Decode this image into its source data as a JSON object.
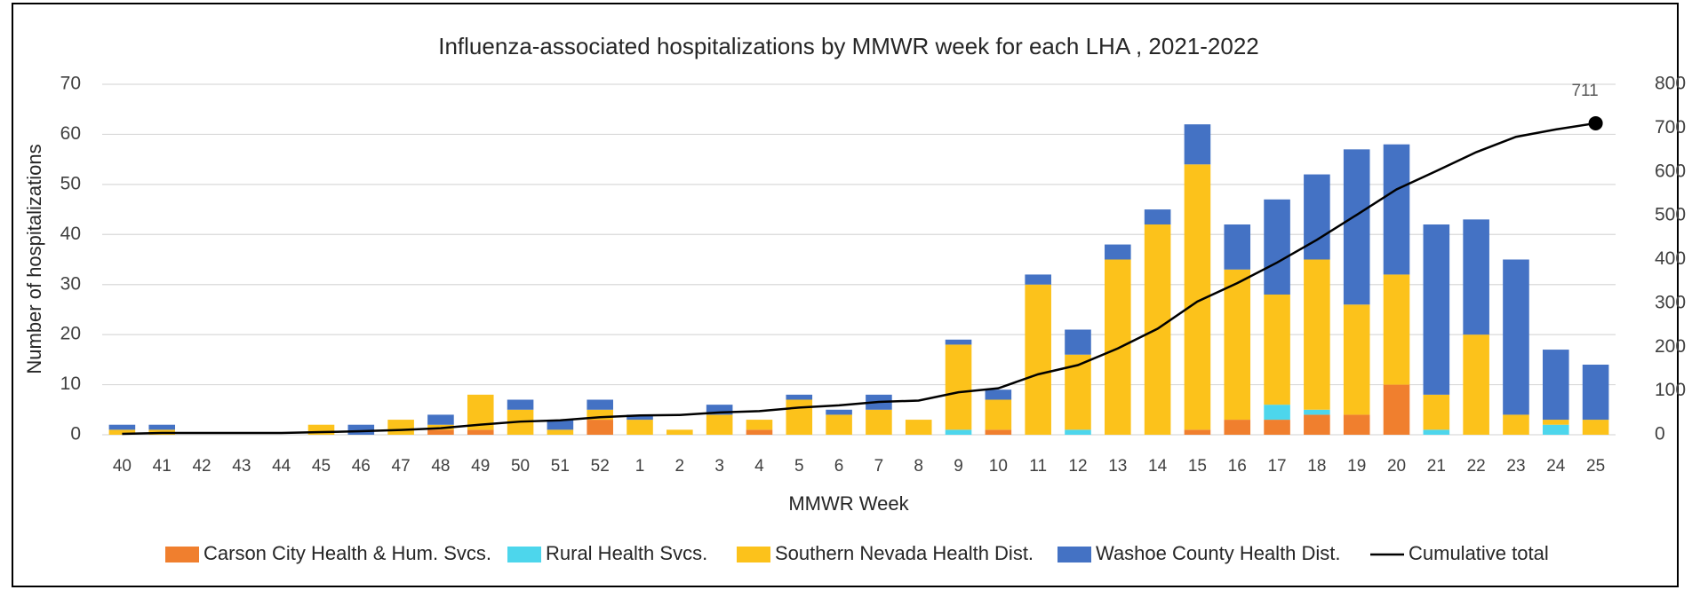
{
  "chart_data": {
    "type": "bar",
    "stacked": true,
    "title": "Influenza-associated hospitalizations by MMWR week for each LHA , 2021-2022",
    "xlabel": "MMWR Week",
    "ylabel": "Number of hospitalizations",
    "categories": [
      "40",
      "41",
      "42",
      "43",
      "44",
      "45",
      "46",
      "47",
      "48",
      "49",
      "50",
      "51",
      "52",
      "1",
      "2",
      "3",
      "4",
      "5",
      "6",
      "7",
      "8",
      "9",
      "10",
      "11",
      "12",
      "13",
      "14",
      "15",
      "16",
      "17",
      "18",
      "19",
      "20",
      "21",
      "22",
      "23",
      "24",
      "25"
    ],
    "series": [
      {
        "name": "Carson City Health & Hum. Svcs.",
        "color": "#f07f2e",
        "values": [
          0,
          0,
          0,
          0,
          0,
          0,
          0,
          0,
          1,
          1,
          0,
          0,
          3,
          0,
          0,
          0,
          1,
          0,
          0,
          0,
          0,
          0,
          1,
          0,
          0,
          0,
          0,
          1,
          3,
          3,
          4,
          4,
          10,
          0,
          0,
          0,
          0,
          0
        ]
      },
      {
        "name": "Rural Health Svcs.",
        "color": "#4dd6ec",
        "values": [
          0,
          0,
          0,
          0,
          0,
          0,
          0,
          0,
          0,
          0,
          0,
          0,
          0,
          0,
          0,
          0,
          0,
          0,
          0,
          0,
          0,
          1,
          0,
          0,
          1,
          0,
          0,
          0,
          0,
          3,
          1,
          0,
          0,
          1,
          0,
          0,
          2,
          0
        ]
      },
      {
        "name": "Southern Nevada Health Dist.",
        "color": "#fcc21b",
        "values": [
          1,
          1,
          0,
          0,
          0,
          2,
          0,
          3,
          1,
          7,
          5,
          1,
          2,
          3,
          1,
          4,
          2,
          7,
          4,
          5,
          3,
          17,
          6,
          30,
          15,
          35,
          42,
          53,
          30,
          22,
          30,
          22,
          22,
          7,
          20,
          4,
          1,
          3
        ]
      },
      {
        "name": "Washoe County Health Dist.",
        "color": "#4472c4",
        "values": [
          1,
          1,
          0,
          0,
          0,
          0,
          2,
          0,
          2,
          0,
          2,
          2,
          2,
          1,
          0,
          2,
          0,
          1,
          1,
          3,
          0,
          1,
          2,
          2,
          5,
          3,
          3,
          8,
          9,
          19,
          17,
          31,
          26,
          34,
          23,
          31,
          14,
          11
        ]
      },
      {
        "name": "Cumulative total",
        "type": "line",
        "axis": "y2",
        "color": "#000000",
        "values": [
          2,
          4,
          4,
          4,
          4,
          6,
          8,
          11,
          15,
          23,
          30,
          33,
          40,
          44,
          45,
          51,
          54,
          62,
          67,
          75,
          78,
          97,
          106,
          138,
          159,
          197,
          242,
          304,
          346,
          393,
          445,
          502,
          560,
          602,
          645,
          680,
          697,
          711
        ]
      }
    ],
    "ylim": [
      0,
      70
    ],
    "yticks": [
      0,
      10,
      20,
      30,
      40,
      50,
      60,
      70
    ],
    "y2lim": [
      0,
      800
    ],
    "y2ticks": [
      0,
      100,
      200,
      300,
      400,
      500,
      600,
      700,
      800
    ],
    "grid": true,
    "legend": "bottom"
  }
}
